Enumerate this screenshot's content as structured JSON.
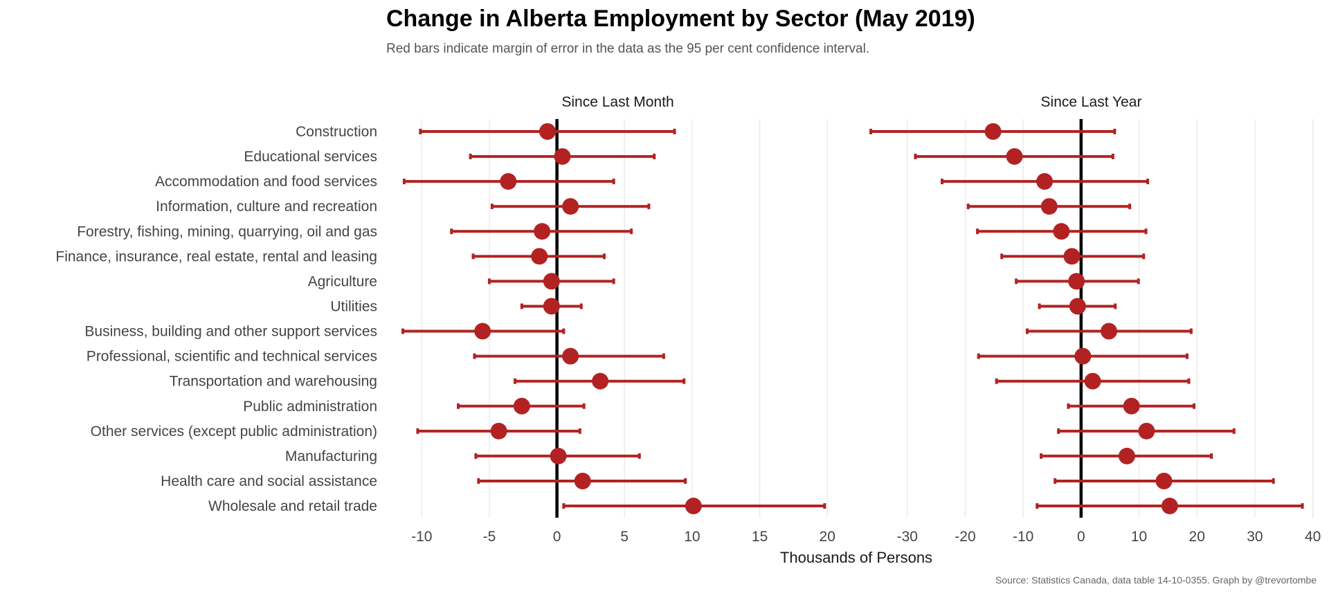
{
  "title": "Change in Alberta Employment by Sector (May 2019)",
  "subtitle": "Red bars indicate margin of error in the data as the 95 per cent confidence interval.",
  "caption": "Source: Statistics Canada, data table 14-10-0355. Graph by @trevortombe",
  "colors": {
    "marker": "#b22222",
    "zero_line": "#000000",
    "grid": "#e6e6e6",
    "text": "#444444"
  },
  "chart_data": {
    "type": "scatter",
    "xlabel": "Thousands of Persons",
    "categories": [
      "Construction",
      "Educational services",
      "Accommodation and food services",
      "Information, culture and recreation",
      "Forestry, fishing, mining, quarrying, oil and gas",
      "Finance, insurance, real estate, rental and leasing",
      "Agriculture",
      "Utilities",
      "Business, building and other support services",
      "Professional, scientific and technical services",
      "Transportation and warehousing",
      "Public administration",
      "Other services (except public administration)",
      "Manufacturing",
      "Health care and social assistance",
      "Wholesale and retail trade"
    ],
    "panels": [
      {
        "name": "Since Last Month",
        "xlim": [
          -11.5,
          20.5
        ],
        "ticks": [
          -10,
          -5,
          0,
          5,
          10,
          15,
          20
        ],
        "tick_labels": [
          "-10",
          "-5",
          "0",
          "5",
          "10",
          "15",
          "20"
        ],
        "values": [
          -0.7,
          0.4,
          -3.6,
          1.0,
          -1.1,
          -1.3,
          -0.4,
          -0.4,
          -5.5,
          1.0,
          3.2,
          -2.6,
          -4.3,
          0.1,
          1.9,
          10.1
        ],
        "low": [
          -10.1,
          -6.4,
          -11.3,
          -4.8,
          -7.8,
          -6.2,
          -5.0,
          -2.6,
          -11.4,
          -6.1,
          -3.1,
          -7.3,
          -10.3,
          -6.0,
          -5.8,
          0.5
        ],
        "high": [
          8.7,
          7.2,
          4.2,
          6.8,
          5.5,
          3.5,
          4.2,
          1.8,
          0.5,
          7.9,
          9.4,
          2.0,
          1.7,
          6.1,
          9.5,
          19.8
        ]
      },
      {
        "name": "Since Last Year",
        "xlim": [
          -37.5,
          41
        ],
        "ticks": [
          -30,
          -20,
          -10,
          0,
          10,
          20,
          30,
          40
        ],
        "tick_labels": [
          "-30",
          "-20",
          "-10",
          "0",
          "10",
          "20",
          "30",
          "40"
        ],
        "values": [
          -15.2,
          -11.5,
          -6.3,
          -5.5,
          -3.4,
          -1.6,
          -0.8,
          -0.6,
          4.8,
          0.3,
          2.0,
          8.7,
          11.3,
          7.9,
          14.3,
          15.3
        ],
        "low": [
          -36.3,
          -28.6,
          -24.0,
          -19.5,
          -17.9,
          -13.7,
          -11.2,
          -7.2,
          -9.3,
          -17.7,
          -14.6,
          -2.2,
          -3.9,
          -6.9,
          -4.5,
          -7.6
        ],
        "high": [
          5.8,
          5.5,
          11.5,
          8.4,
          11.2,
          10.8,
          9.9,
          5.9,
          19.0,
          18.3,
          18.6,
          19.5,
          26.4,
          22.5,
          33.2,
          38.2
        ]
      }
    ],
    "grid": true,
    "legend": "none"
  }
}
